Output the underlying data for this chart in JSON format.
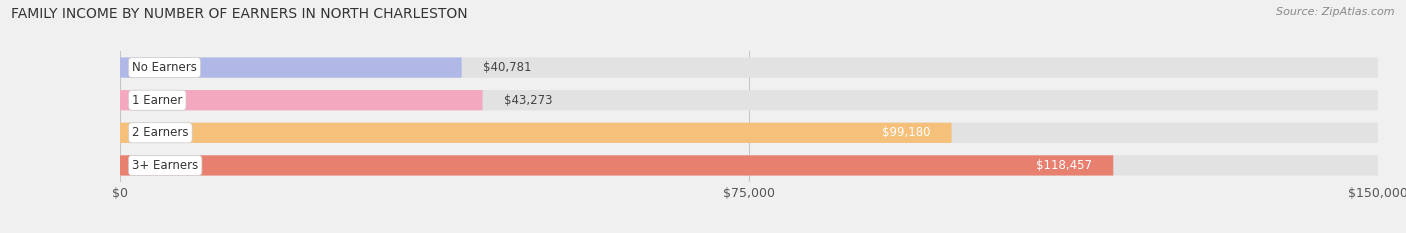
{
  "title": "FAMILY INCOME BY NUMBER OF EARNERS IN NORTH CHARLESTON",
  "source": "Source: ZipAtlas.com",
  "categories": [
    "No Earners",
    "1 Earner",
    "2 Earners",
    "3+ Earners"
  ],
  "values": [
    40781,
    43273,
    99180,
    118457
  ],
  "bar_colors": [
    "#b0b8e8",
    "#f4a8c0",
    "#f5c07a",
    "#e88070"
  ],
  "label_colors": [
    "#444444",
    "#444444",
    "#ffffff",
    "#ffffff"
  ],
  "xlim": [
    0,
    150000
  ],
  "xticks": [
    0,
    75000,
    150000
  ],
  "xtick_labels": [
    "$0",
    "$75,000",
    "$150,000"
  ],
  "background_color": "#f0f0f0",
  "bar_background_color": "#e2e2e2",
  "bar_height": 0.62,
  "figsize": [
    14.06,
    2.33
  ],
  "dpi": 100
}
